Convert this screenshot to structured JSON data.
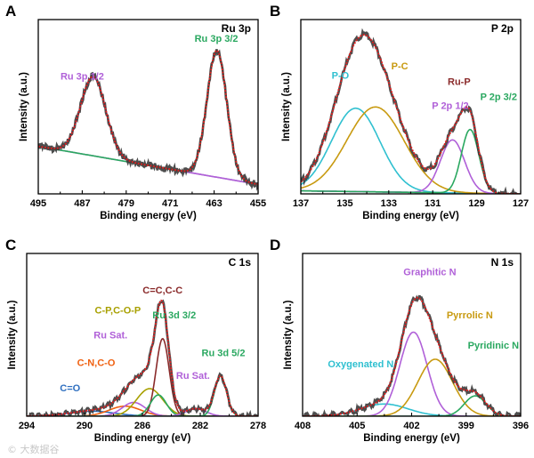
{
  "watermark": "© 大数据谷",
  "colors": {
    "raw": "#3a3a3a",
    "fit": "#e02020",
    "bg": "#a878c8",
    "green": "#2aa860",
    "purple": "#b060d8",
    "cyan": "#30c0d0",
    "gold": "#c89a10",
    "darkred": "#8a2a2a",
    "orange": "#f06010",
    "olive": "#a8a000",
    "blue": "#3070c0"
  },
  "chart_data": [
    {
      "panel": "A",
      "title": "Ru 3p",
      "type": "line",
      "xlabel": "Binding energy (eV)",
      "ylabel": "Intensity (a.u.)",
      "xlim": [
        495,
        455
      ],
      "xticks": [
        495,
        487,
        479,
        471,
        463,
        455
      ],
      "ylim": [
        0,
        110
      ],
      "baseline": {
        "x": [
          495,
          455
        ],
        "y": [
          30,
          6
        ]
      },
      "series": [
        {
          "name": "Ru 3p 1/2",
          "center": 485.0,
          "sigma": 2.3,
          "amp": 50,
          "color": "purple"
        },
        {
          "name": "Ru 3p 3/2",
          "center": 462.5,
          "sigma": 1.8,
          "amp": 80,
          "color": "green"
        }
      ],
      "annotations": [
        {
          "text": "Ru 3p 1/2",
          "x": 487.0,
          "y": 72,
          "color": "purple"
        },
        {
          "text": "Ru 3p 3/2",
          "x": 462.6,
          "y": 96,
          "color": "green"
        }
      ]
    },
    {
      "panel": "B",
      "title": "P 2p",
      "type": "line",
      "xlabel": "Binding energy (eV)",
      "ylabel": "Intensity (a.u.)",
      "xlim": [
        137,
        127
      ],
      "xticks": [
        137,
        135,
        133,
        131,
        129,
        127
      ],
      "ylim": [
        0,
        115
      ],
      "baseline": {
        "x": [
          137,
          127
        ],
        "y": [
          2,
          0
        ]
      },
      "series": [
        {
          "name": "P-O",
          "center": 134.5,
          "sigma": 1.1,
          "amp": 55,
          "color": "cyan"
        },
        {
          "name": "P-C",
          "center": 133.6,
          "sigma": 1.3,
          "amp": 56,
          "color": "gold"
        },
        {
          "name": "P 2p 1/2",
          "center": 130.1,
          "sigma": 0.55,
          "amp": 35,
          "color": "purple"
        },
        {
          "name": "P 2p 3/2",
          "center": 129.3,
          "sigma": 0.4,
          "amp": 42,
          "color": "green"
        }
      ],
      "annotations": [
        {
          "text": "P-O",
          "x": 135.2,
          "y": 76,
          "color": "cyan"
        },
        {
          "text": "P-C",
          "x": 132.5,
          "y": 82,
          "color": "gold"
        },
        {
          "text": "Ru-P",
          "x": 129.8,
          "y": 72,
          "color": "darkred"
        },
        {
          "text": "P 2p 1/2",
          "x": 130.2,
          "y": 56,
          "color": "purple"
        },
        {
          "text": "P 2p 3/2",
          "x": 128.0,
          "y": 62,
          "color": "green"
        }
      ]
    },
    {
      "panel": "C",
      "title": "C 1s",
      "type": "line",
      "xlabel": "Binding energy (eV)",
      "ylabel": "Intensity (a.u.)",
      "xlim": [
        294,
        278
      ],
      "xticks": [
        294,
        290,
        286,
        282,
        278
      ],
      "ylim": [
        0,
        130
      ],
      "baseline": {
        "x": [
          294,
          278
        ],
        "y": [
          0,
          0
        ]
      },
      "series": [
        {
          "name": "C=O",
          "center": 289.5,
          "sigma": 1.6,
          "amp": 4,
          "color": "blue"
        },
        {
          "name": "C-N,C-O",
          "center": 287.2,
          "sigma": 1.1,
          "amp": 8,
          "color": "orange"
        },
        {
          "name": "Ru Sat.",
          "center": 286.6,
          "sigma": 0.8,
          "amp": 11,
          "color": "purple"
        },
        {
          "name": "C-P,C-O-P",
          "center": 285.5,
          "sigma": 0.9,
          "amp": 22,
          "color": "olive"
        },
        {
          "name": "C=C,C-C",
          "center": 284.6,
          "sigma": 0.45,
          "amp": 62,
          "color": "darkred"
        },
        {
          "name": "Ru 3d 3/2",
          "center": 284.9,
          "sigma": 0.55,
          "amp": 17,
          "color": "green"
        },
        {
          "name": "Ru Sat.",
          "center": 282.3,
          "sigma": 0.7,
          "amp": 6,
          "color": "purple"
        },
        {
          "name": "Ru 3d 5/2",
          "center": 280.6,
          "sigma": 0.42,
          "amp": 32,
          "color": "green"
        }
      ],
      "annotations": [
        {
          "text": "C=C,C-C",
          "x": 284.6,
          "y": 98,
          "color": "darkred"
        },
        {
          "text": "C-P,C-O-P",
          "x": 287.7,
          "y": 82,
          "color": "olive"
        },
        {
          "text": "Ru 3d 3/2",
          "x": 283.8,
          "y": 78,
          "color": "green"
        },
        {
          "text": "Ru Sat.",
          "x": 288.2,
          "y": 62,
          "color": "purple"
        },
        {
          "text": "C-N,C-O",
          "x": 289.2,
          "y": 40,
          "color": "orange"
        },
        {
          "text": "C=O",
          "x": 291.0,
          "y": 20,
          "color": "blue"
        },
        {
          "text": "Ru 3d 5/2",
          "x": 280.4,
          "y": 48,
          "color": "green"
        },
        {
          "text": "Ru Sat.",
          "x": 282.5,
          "y": 30,
          "color": "purple"
        }
      ]
    },
    {
      "panel": "D",
      "title": "N 1s",
      "type": "line",
      "xlabel": "Binding energy (eV)",
      "ylabel": "Intensity (a.u.)",
      "xlim": [
        408,
        396
      ],
      "xticks": [
        408,
        405,
        402,
        399,
        396
      ],
      "ylim": [
        0,
        120
      ],
      "baseline": {
        "x": [
          408,
          396
        ],
        "y": [
          0,
          0
        ]
      },
      "series": [
        {
          "name": "Oxygenated N",
          "center": 403.5,
          "sigma": 1.3,
          "amp": 9,
          "color": "cyan"
        },
        {
          "name": "Graphitic N",
          "center": 401.9,
          "sigma": 0.75,
          "amp": 62,
          "color": "purple"
        },
        {
          "name": "Pyrrolic N",
          "center": 400.7,
          "sigma": 0.95,
          "amp": 42,
          "color": "gold"
        },
        {
          "name": "Pyridinic N",
          "center": 398.5,
          "sigma": 0.6,
          "amp": 15,
          "color": "green"
        }
      ],
      "annotations": [
        {
          "text": "Graphitic N",
          "x": 401.0,
          "y": 104,
          "color": "purple"
        },
        {
          "text": "Pyrrolic N",
          "x": 398.8,
          "y": 72,
          "color": "gold"
        },
        {
          "text": "Pyridinic N",
          "x": 397.5,
          "y": 50,
          "color": "green"
        },
        {
          "text": "Oxygenated N",
          "x": 404.8,
          "y": 36,
          "color": "cyan"
        }
      ]
    }
  ]
}
